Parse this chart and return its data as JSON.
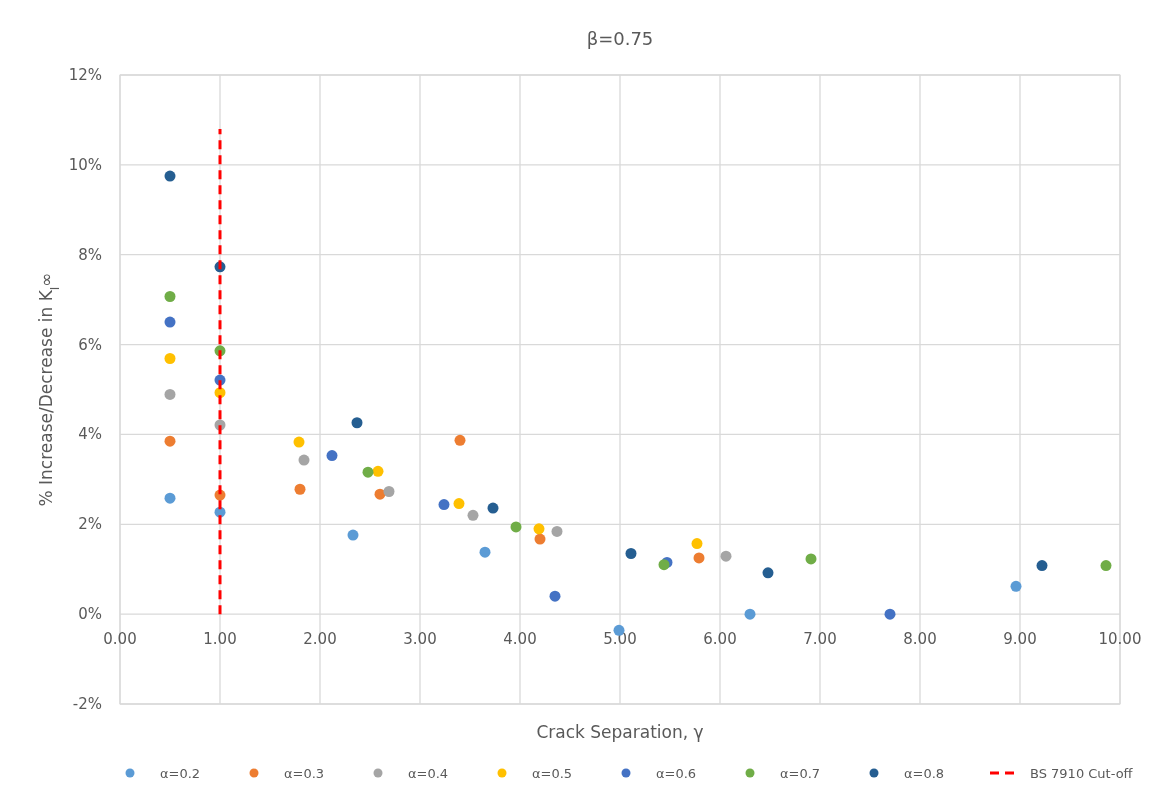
{
  "chart_data": {
    "type": "scatter",
    "title": "β=0.75",
    "xlabel": "Crack Separation, γ",
    "ylabel": "% Increase/Decrease in K$_{I}$∞",
    "xlim": [
      0,
      10
    ],
    "xticks": [
      {
        "value": 0,
        "label": "0.00"
      },
      {
        "value": 1,
        "label": "1.00"
      },
      {
        "value": 2,
        "label": "2.00"
      },
      {
        "value": 3,
        "label": "3.00"
      },
      {
        "value": 4,
        "label": "4.00"
      },
      {
        "value": 5,
        "label": "5.00"
      },
      {
        "value": 6,
        "label": "6.00"
      },
      {
        "value": 7,
        "label": "7.00"
      },
      {
        "value": 8,
        "label": "8.00"
      },
      {
        "value": 9,
        "label": "9.00"
      },
      {
        "value": 10,
        "label": "10.00"
      }
    ],
    "ylim": [
      -2,
      12
    ],
    "yticks": [
      {
        "value": -2,
        "label": "-2%"
      },
      {
        "value": 0,
        "label": "0%"
      },
      {
        "value": 2,
        "label": "2%"
      },
      {
        "value": 4,
        "label": "4%"
      },
      {
        "value": 6,
        "label": "6%"
      },
      {
        "value": 8,
        "label": "8%"
      },
      {
        "value": 10,
        "label": "10%"
      },
      {
        "value": 12,
        "label": "12%"
      }
    ],
    "grid": true,
    "legend": "bottom",
    "marker": "circle",
    "series": [
      {
        "name": "α=0.2",
        "color": "#5b9bd5",
        "x": [
          0.5,
          1.0,
          2.33,
          3.65,
          4.99,
          6.3,
          8.96
        ],
        "values": [
          2.58,
          2.27,
          1.76,
          1.38,
          -0.36,
          0.0,
          0.62
        ]
      },
      {
        "name": "α=0.3",
        "color": "#ed7d31",
        "x": [
          0.5,
          1.0,
          1.8,
          2.6,
          3.4,
          4.2,
          5.79
        ],
        "values": [
          3.85,
          2.65,
          2.78,
          2.67,
          3.87,
          1.67,
          1.25
        ]
      },
      {
        "name": "α=0.4",
        "color": "#a5a5a5",
        "x": [
          0.5,
          1.0,
          1.84,
          2.69,
          3.53,
          4.37,
          6.06
        ],
        "values": [
          4.89,
          4.21,
          3.43,
          2.73,
          2.2,
          1.84,
          1.29
        ]
      },
      {
        "name": "α=0.5",
        "color": "#ffc000",
        "x": [
          0.5,
          1.0,
          1.79,
          2.58,
          3.39,
          4.19,
          5.77
        ],
        "values": [
          5.69,
          4.93,
          3.83,
          3.18,
          2.46,
          1.9,
          1.57
        ]
      },
      {
        "name": "α=0.6",
        "color": "#4472c4",
        "x": [
          0.5,
          1.0,
          2.12,
          3.24,
          4.35,
          5.47,
          7.7
        ],
        "values": [
          6.5,
          5.21,
          3.53,
          2.44,
          0.4,
          1.15,
          0.0
        ]
      },
      {
        "name": "α=0.7",
        "color": "#70ad47",
        "x": [
          0.5,
          1.0,
          2.48,
          3.96,
          5.44,
          6.91,
          9.86
        ],
        "values": [
          7.07,
          5.86,
          3.16,
          1.94,
          1.1,
          1.23,
          1.08
        ]
      },
      {
        "name": "α=0.8",
        "color": "#255e91",
        "x": [
          0.5,
          1.0,
          2.37,
          3.73,
          5.11,
          6.48,
          9.22
        ],
        "values": [
          9.75,
          7.73,
          4.26,
          2.36,
          1.35,
          0.92,
          1.08
        ]
      },
      {
        "name": "BS 7910 Cut-off",
        "type": "line",
        "line_style": "dashed",
        "marker": "none",
        "color": "#ff0000",
        "x": [
          1,
          1
        ],
        "values": [
          0,
          10.8
        ]
      }
    ]
  }
}
